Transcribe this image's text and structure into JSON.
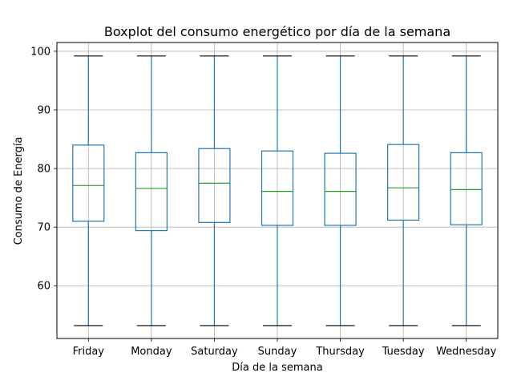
{
  "chart_data": {
    "type": "boxplot",
    "title": "Boxplot del consumo energético por día de la semana",
    "xlabel": "Día de la semana",
    "ylabel": "Consumo de Energía",
    "categories": [
      "Friday",
      "Monday",
      "Saturday",
      "Sunday",
      "Thursday",
      "Tuesday",
      "Wednesday"
    ],
    "yticks": [
      60,
      70,
      80,
      90,
      100
    ],
    "ylim": [
      51,
      101.5
    ],
    "grid": true,
    "boxes": [
      {
        "category": "Friday",
        "whislo": 53.2,
        "q1": 71.0,
        "med": 77.1,
        "q3": 84.0,
        "whishi": 99.2
      },
      {
        "category": "Monday",
        "whislo": 53.2,
        "q1": 69.4,
        "med": 76.6,
        "q3": 82.7,
        "whishi": 99.2
      },
      {
        "category": "Saturday",
        "whislo": 53.2,
        "q1": 70.8,
        "med": 77.5,
        "q3": 83.4,
        "whishi": 99.2
      },
      {
        "category": "Sunday",
        "whislo": 53.2,
        "q1": 70.3,
        "med": 76.1,
        "q3": 83.0,
        "whishi": 99.2
      },
      {
        "category": "Thursday",
        "whislo": 53.2,
        "q1": 70.3,
        "med": 76.1,
        "q3": 82.6,
        "whishi": 99.2
      },
      {
        "category": "Tuesday",
        "whislo": 53.2,
        "q1": 71.2,
        "med": 76.7,
        "q3": 84.1,
        "whishi": 99.2
      },
      {
        "category": "Wednesday",
        "whislo": 53.2,
        "q1": 70.4,
        "med": 76.4,
        "q3": 82.7,
        "whishi": 99.2
      }
    ],
    "colors": {
      "box": "#1f77b4",
      "median": "#2ca02c",
      "cap": "#000000",
      "grid": "#b0b0b0",
      "axis": "#000000"
    }
  }
}
